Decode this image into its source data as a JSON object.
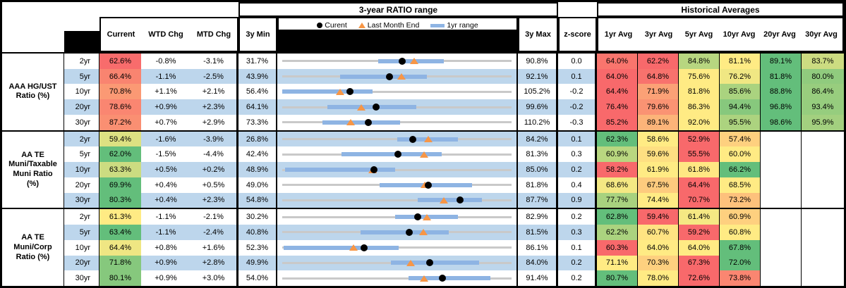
{
  "colors": {
    "scale_min": "#F8696B",
    "scale_mid": "#FFEB84",
    "scale_max": "#63BE7B",
    "stripe_blue": "#BDD6EC",
    "range_bar_blue": "#8EB4E3",
    "track_gray": "#C9C9C9",
    "triangle_orange": "#F79646",
    "dot_black": "#000000"
  },
  "chart_data": {
    "type": "table",
    "title_range": "3-year RATIO range",
    "title_hist": "Historical Averages",
    "columns": {
      "current": "Current",
      "wtd": "WTD Chg",
      "mtd": "MTD Chg",
      "min": "3y Min",
      "max": "3y Max",
      "z": "z-score",
      "avgs": [
        "1yr Avg",
        "3yr Avg",
        "5yr Avg",
        "10yr Avg",
        "20yr Avg",
        "30yr Avg"
      ]
    },
    "legend": {
      "current": "Curent",
      "lme": "Last Month End",
      "range": "1yr range"
    },
    "range_chart_note": "Each row: gray track spans 3y Min to 3y Max; blue bar is 1yr range; black dot is Current; orange triangle is Last Month End",
    "groups": [
      {
        "label": "AAA HG/UST\nRatio (%)",
        "rows": [
          {
            "tenor": "2yr",
            "current": 62.6,
            "wtd": "-0.8%",
            "mtd": "-3.1%",
            "min": 31.7,
            "max": 90.8,
            "z": "0.0",
            "avgs": [
              64.0,
              62.2,
              84.8,
              81.1,
              89.1,
              83.7
            ],
            "range_lo": 56.4,
            "range_hi": 73.4,
            "lme": 65.7
          },
          {
            "tenor": "5yr",
            "current": 66.4,
            "wtd": "-1.1%",
            "mtd": "-2.5%",
            "min": 43.9,
            "max": 92.1,
            "z": "0.1",
            "avgs": [
              64.0,
              64.8,
              75.6,
              76.2,
              81.8,
              80.0
            ],
            "range_lo": 56.0,
            "range_hi": 74.3,
            "lme": 68.9
          },
          {
            "tenor": "10yr",
            "current": 70.8,
            "wtd": "+1.1%",
            "mtd": "+2.1%",
            "min": 56.4,
            "max": 105.2,
            "z": "-0.2",
            "avgs": [
              64.4,
              71.9,
              81.8,
              85.6,
              88.8,
              86.4
            ],
            "range_lo": 56.4,
            "range_hi": 75.6,
            "lme": 68.7
          },
          {
            "tenor": "20yr",
            "current": 78.6,
            "wtd": "+0.9%",
            "mtd": "+2.3%",
            "min": 64.1,
            "max": 99.6,
            "z": "-0.2",
            "avgs": [
              76.4,
              79.6,
              86.3,
              94.4,
              96.8,
              93.4
            ],
            "range_lo": 71.1,
            "range_hi": 84.8,
            "lme": 76.3
          },
          {
            "tenor": "30yr",
            "current": 87.2,
            "wtd": "+0.7%",
            "mtd": "+2.9%",
            "min": 73.3,
            "max": 110.2,
            "z": "-0.3",
            "avgs": [
              85.2,
              89.1,
              92.0,
              95.5,
              98.6,
              95.9
            ],
            "range_lo": 79.8,
            "range_hi": 92.3,
            "lme": 84.3
          }
        ]
      },
      {
        "label": "AA TE\nMuni/Taxable\nMuni Ratio\n(%)",
        "rows": [
          {
            "tenor": "2yr",
            "current": 59.4,
            "wtd": "-1.6%",
            "mtd": "-3.9%",
            "min": 26.8,
            "max": 84.2,
            "z": "0.1",
            "avgs": [
              62.3,
              58.6,
              52.9,
              57.4,
              null,
              null
            ],
            "range_lo": 55.5,
            "range_hi": 70.7,
            "lme": 63.3
          },
          {
            "tenor": "5yr",
            "current": 62.0,
            "wtd": "-1.5%",
            "mtd": "-4.4%",
            "min": 42.4,
            "max": 81.3,
            "z": "0.3",
            "avgs": [
              60.9,
              59.6,
              55.5,
              60.0,
              null,
              null
            ],
            "range_lo": 52.4,
            "range_hi": 69.5,
            "lme": 66.4
          },
          {
            "tenor": "10yr",
            "current": 63.3,
            "wtd": "+0.5%",
            "mtd": "+0.2%",
            "min": 48.9,
            "max": 85.0,
            "z": "0.2",
            "avgs": [
              58.2,
              61.9,
              61.8,
              66.2,
              null,
              null
            ],
            "range_lo": 49.3,
            "range_hi": 66.7,
            "lme": 63.1
          },
          {
            "tenor": "20yr",
            "current": 69.9,
            "wtd": "+0.4%",
            "mtd": "+0.5%",
            "min": 49.0,
            "max": 81.8,
            "z": "0.4",
            "avgs": [
              68.6,
              67.5,
              64.4,
              68.5,
              null,
              null
            ],
            "range_lo": 62.9,
            "range_hi": 76.1,
            "lme": 69.4
          },
          {
            "tenor": "30yr",
            "current": 80.3,
            "wtd": "+0.4%",
            "mtd": "+2.3%",
            "min": 54.8,
            "max": 87.7,
            "z": "0.9",
            "avgs": [
              77.7,
              74.4,
              70.7,
              73.2,
              null,
              null
            ],
            "range_lo": 74.2,
            "range_hi": 83.4,
            "lme": 78.0
          }
        ]
      },
      {
        "label": "AA TE\nMuni/Corp\nRatio (%)",
        "rows": [
          {
            "tenor": "2yr",
            "current": 61.3,
            "wtd": "-1.1%",
            "mtd": "-2.1%",
            "min": 30.2,
            "max": 82.9,
            "z": "0.2",
            "avgs": [
              62.8,
              59.4,
              61.4,
              60.9,
              null,
              null
            ],
            "range_lo": 56.2,
            "range_hi": 70.6,
            "lme": 63.4
          },
          {
            "tenor": "5yr",
            "current": 63.4,
            "wtd": "-1.1%",
            "mtd": "-2.4%",
            "min": 40.8,
            "max": 81.5,
            "z": "0.3",
            "avgs": [
              62.2,
              60.7,
              59.2,
              60.8,
              null,
              null
            ],
            "range_lo": 54.7,
            "range_hi": 70.4,
            "lme": 65.8
          },
          {
            "tenor": "10yr",
            "current": 64.4,
            "wtd": "+0.8%",
            "mtd": "+1.6%",
            "min": 52.3,
            "max": 86.1,
            "z": "0.1",
            "avgs": [
              60.3,
              64.0,
              64.0,
              67.8,
              null,
              null
            ],
            "range_lo": 52.5,
            "range_hi": 69.5,
            "lme": 62.8
          },
          {
            "tenor": "20yr",
            "current": 71.8,
            "wtd": "+0.9%",
            "mtd": "+2.8%",
            "min": 49.9,
            "max": 84.0,
            "z": "0.2",
            "avgs": [
              71.1,
              70.3,
              67.3,
              72.0,
              null,
              null
            ],
            "range_lo": 66.1,
            "range_hi": 79.2,
            "lme": 69.0
          },
          {
            "tenor": "30yr",
            "current": 80.1,
            "wtd": "+0.9%",
            "mtd": "+3.0%",
            "min": 54.0,
            "max": 91.4,
            "z": "0.2",
            "avgs": [
              80.7,
              78.0,
              72.6,
              73.8,
              null,
              null
            ],
            "range_lo": 74.6,
            "range_hi": 88.0,
            "lme": 77.1
          }
        ]
      }
    ]
  }
}
